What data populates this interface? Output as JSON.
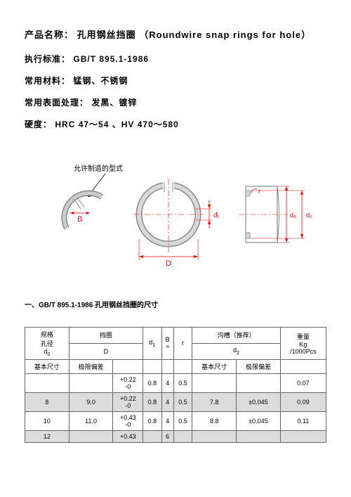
{
  "title": {
    "label": "产品名称：",
    "name_cn": "孔用钢丝挡圈",
    "name_en": "（Roundwire snap rings for hole）"
  },
  "specs": {
    "standard_label": "执行标准：",
    "standard_value": "GB/T 895.1-1986",
    "material_label": "常用材料：",
    "material_value": "锰钢、不锈钢",
    "surface_label": "常用表面处理：",
    "surface_value": "发黑、镀锌",
    "hardness_label": "硬度：",
    "hardness_value": "HRC 47～54 、HV 470～580"
  },
  "diagram": {
    "annotation": "允许制造的型式",
    "labels": {
      "B": "B",
      "D": "D",
      "d1": "d₁",
      "d2": "d₂",
      "d0": "d₀",
      "r": "r"
    },
    "colors": {
      "part": "#c0c0c0",
      "dim": "#ff0000",
      "text": "#ff0000",
      "annot": "#000000"
    }
  },
  "section_header": "一、GB/T 895.1-1986 孔用钢丝挡圈的尺寸",
  "table": {
    "headers": {
      "spec": "规格",
      "hole": "孔径",
      "d0": "d",
      "ring": "挡圈",
      "D": "D",
      "basic": "基本尺寸",
      "tol": "极限偏差",
      "d1": "d",
      "B": "B",
      "approx": "≈",
      "r": "r",
      "groove": "沟槽（推荐）",
      "d2": "d",
      "weight": "重量",
      "kg": "Kg",
      "per": "/1000Pcs"
    },
    "rows": [
      {
        "d0": "",
        "D": "",
        "Dtol": "+0.22\n-0",
        "d1": "0.8",
        "B": "4",
        "r": "0.5",
        "d2b": "",
        "d2t": "",
        "w": "0.07",
        "shade": false
      },
      {
        "d0": "8",
        "D": "9.0",
        "Dtol": "+0.22\n-0",
        "d1": "0.8",
        "B": "4",
        "r": "0.5",
        "d2b": "7.8",
        "d2t": "±0.045",
        "w": "0.09",
        "shade": true
      },
      {
        "d0": "10",
        "D": "11.0",
        "Dtol": "+0.43\n-0",
        "d1": "0.8",
        "B": "4",
        "r": "0.5",
        "d2b": "8.8",
        "d2t": "±0.045",
        "w": "0.11",
        "shade": false
      },
      {
        "d0": "12",
        "D": "",
        "Dtol": "+0.43",
        "d1": "",
        "B": "6",
        "r": "",
        "d2b": "",
        "d2t": "",
        "w": "",
        "shade": true
      }
    ]
  }
}
